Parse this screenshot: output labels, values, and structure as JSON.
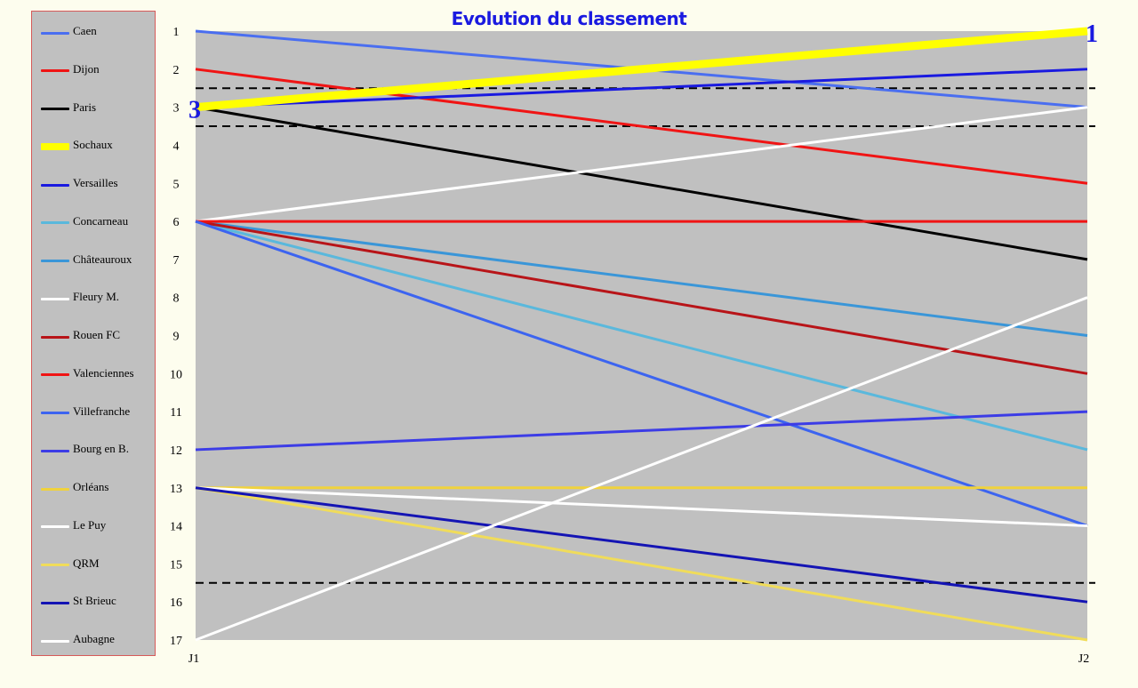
{
  "chart_data": {
    "type": "line",
    "title": "Evolution du classement",
    "x": [
      "J1",
      "J2"
    ],
    "ylim": [
      1,
      17
    ],
    "y_inverted": true,
    "y_ticks": [
      "1",
      "2",
      "3",
      "4",
      "5",
      "6",
      "7",
      "8",
      "9",
      "10",
      "11",
      "12",
      "13",
      "14",
      "15",
      "16",
      "17"
    ],
    "grid": false,
    "legend_position": "left",
    "reference_lines": [
      2.5,
      3.5,
      15.5
    ],
    "annotations": [
      {
        "text": "3",
        "x": "J1",
        "y": 3
      },
      {
        "text": "1",
        "x": "J2",
        "y": 1
      }
    ],
    "series": [
      {
        "name": "Caen",
        "values": [
          1,
          3
        ],
        "color": "#4a6ef0"
      },
      {
        "name": "Dijon",
        "values": [
          2,
          5
        ],
        "color": "#f01414"
      },
      {
        "name": "Paris",
        "values": [
          3,
          7
        ],
        "color": "#000000"
      },
      {
        "name": "Sochaux",
        "values": [
          3,
          1
        ],
        "color": "#ffff00",
        "highlight": true
      },
      {
        "name": "Versailles",
        "values": [
          3,
          2
        ],
        "color": "#1a1ae0"
      },
      {
        "name": "Concarneau",
        "values": [
          6,
          12
        ],
        "color": "#5ab8dc"
      },
      {
        "name": "Châteauroux",
        "values": [
          6,
          9
        ],
        "color": "#3a96d8"
      },
      {
        "name": "Fleury M.",
        "values": [
          6,
          3
        ],
        "color": "#ffffff"
      },
      {
        "name": "Rouen FC",
        "values": [
          6,
          10
        ],
        "color": "#b81418"
      },
      {
        "name": "Valenciennes",
        "values": [
          6,
          6
        ],
        "color": "#f01414"
      },
      {
        "name": "Villefranche",
        "values": [
          6,
          14
        ],
        "color": "#3c64f0"
      },
      {
        "name": "Bourg en B.",
        "values": [
          12,
          11
        ],
        "color": "#3c3ce6"
      },
      {
        "name": "Orléans",
        "values": [
          13,
          13
        ],
        "color": "#f0d23c"
      },
      {
        "name": "Le Puy",
        "values": [
          13,
          14
        ],
        "color": "#ffffff"
      },
      {
        "name": "QRM",
        "values": [
          13,
          17
        ],
        "color": "#f0dc5a"
      },
      {
        "name": "St Brieuc",
        "values": [
          13,
          16
        ],
        "color": "#1414b4"
      },
      {
        "name": "Aubagne",
        "values": [
          17,
          8
        ],
        "color": "#ffffff"
      }
    ]
  }
}
